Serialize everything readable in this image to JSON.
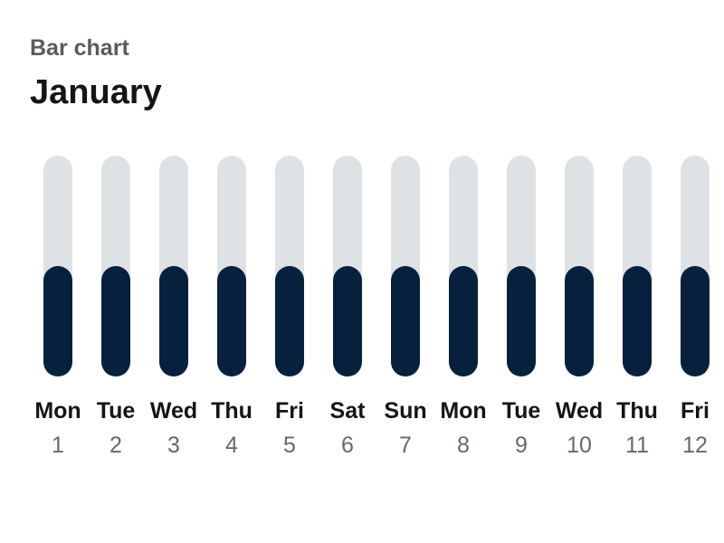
{
  "header": {
    "subtitle": "Bar chart",
    "title": "January"
  },
  "colors": {
    "track": "#dfe2e5",
    "bar": "#07203d",
    "day_label": "#141518",
    "date_label": "#65686d"
  },
  "chart_data": {
    "type": "bar",
    "title": "January",
    "subtitle": "Bar chart",
    "categories": [
      "Mon",
      "Tue",
      "Wed",
      "Thu",
      "Fri",
      "Sat",
      "Sun",
      "Mon",
      "Tue",
      "Wed",
      "Thu",
      "Fri"
    ],
    "dates": [
      "1",
      "2",
      "3",
      "4",
      "5",
      "6",
      "7",
      "8",
      "9",
      "10",
      "11",
      "12"
    ],
    "values": [
      0.5,
      0.5,
      0.5,
      0.5,
      0.5,
      0.5,
      0.5,
      0.5,
      0.5,
      0.5,
      0.5,
      0.5
    ],
    "ylim": [
      0,
      1
    ],
    "grid": false,
    "legend": "none"
  }
}
